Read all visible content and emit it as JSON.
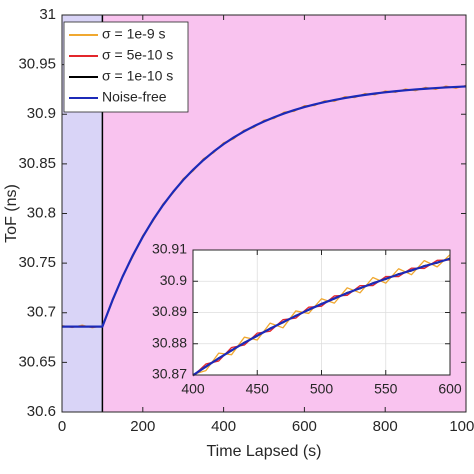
{
  "chart_data": [
    {
      "type": "line",
      "xlabel": "Time Lapsed (s)",
      "ylabel": "ToF (ns)",
      "xlim": [
        0,
        1000
      ],
      "ylim": [
        30.6,
        31
      ],
      "xticks": [
        0,
        200,
        400,
        600,
        800,
        1000
      ],
      "yticks": [
        30.6,
        30.65,
        30.7,
        30.75,
        30.8,
        30.85,
        30.9,
        30.95,
        31
      ],
      "grid": false,
      "legend": "upper left",
      "shaded_regions": [
        {
          "x": [
            0,
            100
          ],
          "color": "#d9d4f7"
        },
        {
          "x": [
            100,
            1000
          ],
          "color": "#f9c3ef"
        }
      ],
      "x": [
        0,
        25,
        50,
        75,
        100,
        125,
        150,
        175,
        200,
        225,
        250,
        275,
        300,
        325,
        350,
        375,
        400,
        425,
        450,
        475,
        500,
        525,
        550,
        575,
        600,
        625,
        650,
        675,
        700,
        725,
        750,
        775,
        800,
        825,
        850,
        875,
        900,
        925,
        950,
        975,
        1000
      ],
      "series": [
        {
          "name": "σ = 1e-9 s",
          "color": "#f0a830",
          "values": [
            30.6872,
            30.6851,
            30.6875,
            30.6849,
            30.6868,
            30.7113,
            30.7374,
            30.7561,
            30.7779,
            30.7921,
            30.8097,
            30.8206,
            30.8351,
            30.843,
            30.8552,
            30.8611,
            30.8713,
            30.8752,
            30.8839,
            30.8867,
            30.8941,
            30.8957,
            30.9022,
            30.9029,
            30.9086,
            30.9087,
            30.9136,
            30.9131,
            30.9177,
            30.9168,
            30.9209,
            30.9196,
            30.9235,
            30.922,
            30.9255,
            30.9237,
            30.9271,
            30.9251,
            30.9284,
            30.9262,
            30.9291
          ]
        },
        {
          "name": "σ = 5e-10 s",
          "color": "#e3262b",
          "values": [
            30.6866,
            30.6855,
            30.6867,
            30.6854,
            30.6864,
            30.712,
            30.7369,
            30.7569,
            30.7772,
            30.7927,
            30.8091,
            30.8212,
            30.8344,
            30.8437,
            30.8545,
            30.8617,
            30.8706,
            30.8759,
            30.8833,
            30.8874,
            30.8934,
            30.8964,
            30.9015,
            30.9036,
            30.9079,
            30.9093,
            30.9129,
            30.9138,
            30.917,
            30.9174,
            30.9202,
            30.9203,
            30.9228,
            30.9226,
            30.9248,
            30.9244,
            30.9264,
            30.9258,
            30.9277,
            30.9269,
            30.9287
          ]
        },
        {
          "name": "σ = 1e-10 s",
          "color": "#000000",
          "values": [
            30.6862,
            30.6859,
            30.6861,
            30.6858,
            30.6861,
            30.7124,
            30.7366,
            30.7574,
            30.7767,
            30.7932,
            30.8086,
            30.8216,
            30.8339,
            30.8441,
            30.854,
            30.8621,
            30.8701,
            30.8764,
            30.8828,
            30.8878,
            30.8929,
            30.8968,
            30.901,
            30.904,
            30.9074,
            30.9097,
            30.9125,
            30.9142,
            30.9165,
            30.9178,
            30.9197,
            30.9207,
            30.9223,
            30.923,
            30.9243,
            30.9248,
            30.9259,
            30.9262,
            30.9272,
            30.9273,
            30.9282
          ]
        },
        {
          "name": "Noise-free",
          "color": "#1c2ab8",
          "values": [
            30.686,
            30.686,
            30.686,
            30.686,
            30.686,
            30.7126,
            30.7364,
            30.7576,
            30.7765,
            30.7934,
            30.8084,
            30.8218,
            30.8337,
            30.8443,
            30.8538,
            30.8623,
            30.8699,
            30.8766,
            30.8826,
            30.888,
            30.8927,
            30.897,
            30.9008,
            30.9042,
            30.9072,
            30.9099,
            30.9123,
            30.9144,
            30.9163,
            30.918,
            30.9195,
            30.9209,
            30.9221,
            30.9232,
            30.9241,
            30.925,
            30.9257,
            30.9264,
            30.927,
            30.9275,
            30.928
          ]
        }
      ]
    },
    {
      "type": "line",
      "xlim": [
        400,
        600
      ],
      "ylim": [
        30.87,
        30.91
      ],
      "xticks": [
        400,
        450,
        500,
        550,
        600
      ],
      "yticks": [
        30.87,
        30.88,
        30.89,
        30.9,
        30.91
      ],
      "grid": true,
      "x": [
        400,
        410,
        420,
        430,
        440,
        450,
        460,
        470,
        480,
        490,
        500,
        510,
        520,
        530,
        540,
        550,
        560,
        570,
        580,
        590,
        600
      ],
      "series": [
        {
          "color": "#f0a830",
          "values": [
            30.8702,
            30.8714,
            30.877,
            30.8765,
            30.8821,
            30.8812,
            30.8866,
            30.8851,
            30.8905,
            30.8897,
            30.8944,
            30.893,
            30.8979,
            30.8963,
            30.9012,
            30.8994,
            30.904,
            30.9021,
            30.9066,
            30.9046,
            30.9085
          ]
        },
        {
          "color": "#e3262b",
          "values": [
            30.8697,
            30.8735,
            30.8745,
            30.8788,
            30.8796,
            30.8834,
            30.884,
            30.8877,
            30.8882,
            30.8917,
            30.892,
            30.8953,
            30.8955,
            30.8986,
            30.8986,
            30.9015,
            30.9015,
            30.9042,
            30.9041,
            30.9067,
            30.9068
          ]
        },
        {
          "color": "#000000",
          "values": [
            30.87,
            30.8725,
            30.8755,
            30.8777,
            30.8805,
            30.8824,
            30.885,
            30.8867,
            30.8891,
            30.8907,
            30.8929,
            30.8943,
            30.8964,
            30.8976,
            30.8995,
            30.9006,
            30.9024,
            30.9033,
            30.905,
            30.9058,
            30.9074
          ]
        },
        {
          "color": "#1c2ab8",
          "values": [
            30.8699,
            30.8727,
            30.8753,
            30.8779,
            30.8803,
            30.8826,
            30.8848,
            30.8869,
            30.8889,
            30.8909,
            30.8927,
            30.8945,
            30.8962,
            30.8978,
            30.8993,
            30.9008,
            30.9022,
            30.9035,
            30.9048,
            30.906,
            30.9072
          ]
        }
      ]
    }
  ]
}
